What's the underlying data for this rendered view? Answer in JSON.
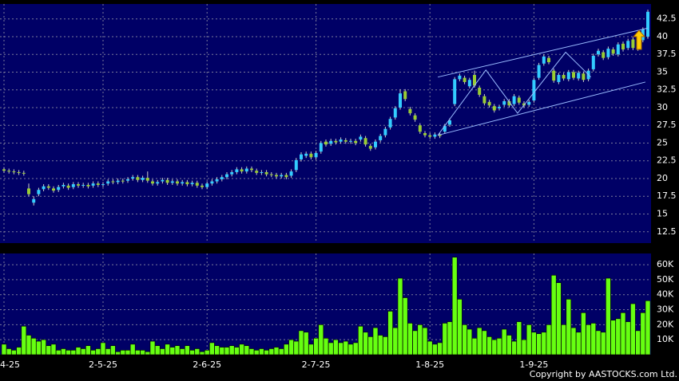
{
  "chart_data": {
    "type": "candlestick",
    "categories": [
      "4-25",
      null,
      null,
      null,
      null,
      null,
      null,
      null,
      null,
      null,
      null,
      null,
      null,
      null,
      null,
      null,
      null,
      null,
      null,
      null,
      "2-5-25",
      null,
      null,
      null,
      null,
      null,
      null,
      null,
      null,
      null,
      null,
      null,
      null,
      null,
      null,
      null,
      null,
      null,
      null,
      null,
      null,
      "2-6-25",
      null,
      null,
      null,
      null,
      null,
      null,
      null,
      null,
      null,
      null,
      null,
      null,
      null,
      null,
      null,
      null,
      null,
      null,
      null,
      null,
      null,
      "2-7-25",
      null,
      null,
      null,
      null,
      null,
      null,
      null,
      null,
      null,
      null,
      null,
      null,
      null,
      null,
      null,
      null,
      null,
      null,
      null,
      null,
      null,
      null,
      "1-8-25",
      null,
      null,
      null,
      null,
      null,
      null,
      null,
      null,
      null,
      null,
      null,
      null,
      null,
      null,
      null,
      null,
      null,
      null,
      null,
      null,
      "1-9-25",
      null,
      null,
      null,
      null,
      null,
      null,
      null,
      null,
      null,
      null,
      null,
      null,
      null,
      null,
      null,
      null,
      null,
      null,
      null,
      null,
      null,
      null,
      null
    ],
    "open": [
      21.3,
      21.1,
      21.0,
      20.9,
      20.8,
      18.6,
      16.6,
      17.8,
      18.5,
      18.9,
      18.6,
      18.4,
      18.9,
      19.0,
      18.8,
      19.2,
      19.0,
      19.1,
      19.0,
      19.3,
      19.1,
      19.3,
      19.6,
      19.5,
      19.7,
      19.7,
      20.0,
      20.2,
      19.8,
      20.1,
      19.6,
      19.3,
      19.6,
      19.8,
      19.4,
      19.6,
      19.3,
      19.5,
      19.2,
      19.4,
      19.0,
      18.8,
      19.3,
      19.6,
      19.9,
      20.2,
      20.6,
      20.9,
      21.3,
      21.0,
      21.4,
      21.1,
      20.8,
      20.9,
      20.6,
      20.5,
      20.3,
      20.5,
      20.4,
      21.2,
      22.7,
      23.2,
      23.5,
      23.0,
      23.8,
      25.2,
      24.9,
      25.3,
      25.2,
      25.4,
      25.2,
      25.3,
      25.5,
      25.7,
      24.6,
      24.4,
      25.4,
      26.1,
      27.2,
      28.6,
      30.0,
      32.3,
      29.8,
      28.9,
      27.5,
      26.4,
      26.1,
      25.9,
      26.2,
      26.6,
      27.6,
      30.5,
      34.0,
      34.2,
      33.0,
      34.6,
      32.8,
      31.6,
      30.8,
      30.2,
      29.9,
      30.4,
      30.9,
      30.5,
      31.4,
      30.6,
      30.4,
      31.0,
      34.2,
      36.2,
      37.0,
      35.2,
      33.6,
      34.6,
      34.0,
      35.0,
      34.1,
      34.8,
      34.0,
      35.4,
      37.5,
      37.8,
      37.1,
      38.2,
      37.5,
      39.0,
      38.4,
      39.6,
      38.3,
      39.5,
      40.0
    ],
    "high": [
      21.6,
      21.4,
      21.3,
      21.2,
      21.1,
      19.3,
      17.5,
      18.7,
      19.2,
      19.2,
      18.9,
      19.1,
      19.4,
      19.3,
      19.5,
      19.5,
      19.4,
      19.4,
      19.6,
      19.6,
      19.5,
      19.9,
      19.9,
      20.0,
      20.0,
      20.2,
      20.5,
      20.5,
      20.4,
      21.0,
      19.9,
      19.8,
      20.1,
      20.1,
      19.9,
      19.9,
      19.8,
      19.8,
      19.7,
      19.7,
      19.3,
      19.6,
      19.9,
      20.2,
      20.5,
      20.9,
      21.2,
      21.6,
      21.6,
      21.7,
      21.7,
      21.4,
      21.2,
      21.2,
      20.9,
      20.8,
      20.8,
      20.8,
      21.3,
      22.9,
      23.7,
      23.8,
      23.8,
      23.9,
      25.3,
      25.5,
      25.6,
      25.6,
      25.8,
      25.7,
      25.6,
      25.6,
      26.2,
      26.0,
      24.9,
      25.5,
      26.3,
      27.3,
      28.7,
      30.2,
      32.6,
      32.6,
      30.1,
      29.2,
      27.8,
      26.7,
      26.4,
      26.5,
      26.5,
      27.7,
      28.5,
      34.3,
      34.8,
      34.5,
      34.2,
      35.2,
      33.1,
      31.9,
      31.1,
      30.5,
      30.4,
      31.2,
      31.2,
      31.9,
      31.7,
      30.9,
      31.1,
      34.2,
      36.3,
      37.5,
      37.3,
      35.5,
      34.9,
      34.9,
      35.3,
      35.3,
      35.2,
      35.1,
      35.5,
      37.6,
      38.3,
      38.1,
      38.6,
      38.5,
      39.2,
      39.3,
      39.7,
      39.9,
      39.9,
      41.3,
      43.8
    ],
    "low": [
      20.8,
      20.7,
      20.6,
      20.5,
      20.4,
      17.5,
      16.2,
      17.5,
      18.2,
      18.4,
      18.0,
      18.1,
      18.6,
      18.4,
      18.5,
      18.7,
      18.7,
      18.6,
      18.7,
      18.8,
      18.8,
      19.0,
      19.2,
      19.2,
      19.3,
      19.4,
      19.7,
      19.5,
      19.5,
      19.4,
      19.0,
      19.0,
      19.3,
      19.1,
      19.1,
      19.0,
      19.0,
      18.9,
      18.9,
      18.7,
      18.5,
      18.5,
      19.0,
      19.3,
      19.6,
      19.9,
      20.3,
      20.6,
      20.7,
      20.7,
      20.9,
      20.5,
      20.5,
      20.3,
      20.2,
      20.0,
      20.0,
      19.9,
      20.1,
      20.9,
      22.4,
      22.9,
      22.7,
      22.7,
      23.5,
      24.5,
      24.6,
      24.8,
      24.9,
      24.9,
      24.9,
      24.7,
      25.2,
      24.5,
      23.9,
      24.1,
      25.1,
      25.8,
      26.9,
      28.3,
      29.7,
      30.9,
      28.9,
      28.0,
      26.3,
      25.8,
      25.6,
      25.6,
      25.7,
      26.3,
      27.3,
      30.2,
      33.7,
      33.3,
      32.7,
      32.8,
      31.5,
      30.3,
      30.0,
      29.3,
      29.6,
      30.1,
      30.0,
      30.2,
      30.4,
      30.0,
      30.1,
      30.7,
      33.9,
      35.9,
      36.1,
      33.5,
      33.3,
      33.8,
      33.7,
      33.9,
      33.8,
      33.6,
      33.7,
      35.1,
      37.2,
      36.7,
      36.8,
      37.3,
      37.2,
      37.9,
      38.1,
      38.1,
      38.0,
      39.2,
      39.7
    ],
    "close": [
      21.1,
      21.0,
      20.9,
      20.8,
      20.7,
      17.8,
      17.1,
      18.4,
      18.9,
      18.7,
      18.3,
      18.8,
      19.1,
      18.7,
      19.2,
      19.0,
      19.1,
      18.9,
      19.3,
      19.1,
      19.2,
      19.6,
      19.5,
      19.7,
      19.6,
      19.9,
      20.2,
      19.8,
      20.1,
      19.7,
      19.3,
      19.5,
      19.8,
      19.4,
      19.6,
      19.3,
      19.5,
      19.2,
      19.4,
      19.0,
      18.8,
      19.3,
      19.6,
      19.9,
      20.2,
      20.6,
      20.9,
      21.3,
      21.0,
      21.4,
      21.2,
      20.8,
      20.9,
      20.6,
      20.5,
      20.3,
      20.5,
      20.2,
      21.0,
      22.6,
      23.4,
      23.5,
      23.0,
      23.6,
      25.0,
      24.8,
      25.3,
      25.1,
      25.5,
      25.2,
      25.3,
      25.0,
      25.9,
      24.8,
      24.2,
      25.2,
      26.0,
      27.0,
      28.4,
      29.9,
      32.0,
      31.2,
      29.2,
      28.3,
      26.6,
      26.1,
      25.9,
      26.2,
      26.0,
      27.4,
      28.2,
      34.0,
      34.5,
      33.6,
      33.9,
      33.1,
      31.8,
      30.6,
      30.3,
      29.6,
      30.1,
      30.9,
      30.3,
      31.6,
      30.7,
      30.3,
      30.8,
      33.9,
      36.0,
      37.2,
      36.4,
      33.8,
      34.6,
      34.1,
      35.0,
      34.2,
      34.9,
      33.9,
      35.2,
      37.3,
      38.0,
      37.0,
      38.3,
      37.6,
      38.9,
      38.2,
      39.4,
      38.4,
      39.6,
      41.0,
      43.5
    ],
    "volume": [
      7000,
      4000,
      3000,
      5000,
      19000,
      13000,
      11000,
      9000,
      10000,
      6000,
      7000,
      3000,
      4000,
      3000,
      3000,
      5000,
      4000,
      6000,
      3000,
      4000,
      8000,
      4000,
      6000,
      2000,
      3000,
      3000,
      7000,
      3000,
      3000,
      2000,
      9000,
      6000,
      4000,
      7000,
      5000,
      6000,
      4000,
      6000,
      3000,
      4000,
      2000,
      3000,
      8000,
      6000,
      5000,
      5000,
      6000,
      5000,
      7000,
      6000,
      4000,
      3000,
      4000,
      3000,
      4000,
      5000,
      4000,
      7000,
      10000,
      9000,
      16000,
      15000,
      7000,
      11000,
      20000,
      11000,
      8000,
      10000,
      8000,
      9000,
      7000,
      8000,
      19000,
      15000,
      12000,
      18000,
      13000,
      12000,
      29000,
      18000,
      51000,
      38000,
      21000,
      16000,
      20000,
      18000,
      9000,
      7000,
      8000,
      21000,
      22000,
      65000,
      37000,
      20000,
      17000,
      11000,
      18000,
      16000,
      12000,
      10000,
      11000,
      17000,
      13000,
      9000,
      22000,
      10000,
      20000,
      15000,
      14000,
      15000,
      20000,
      53000,
      48000,
      20000,
      37000,
      18000,
      15000,
      28000,
      20000,
      21000,
      16000,
      15000,
      51000,
      23000,
      24000,
      28000,
      22000,
      34000,
      16000,
      28000,
      36000
    ],
    "ylim": [
      10.9,
      44.6
    ],
    "yticks": [
      12.5,
      15,
      17.5,
      20,
      22.5,
      25,
      27.5,
      30,
      32.5,
      35,
      37.5,
      40,
      42.5
    ],
    "y2lim": [
      0,
      67500
    ],
    "y2ticks": [
      {
        "value": 10000,
        "label": "10K"
      },
      {
        "value": 20000,
        "label": "20K"
      },
      {
        "value": 30000,
        "label": "30K"
      },
      {
        "value": 40000,
        "label": "40K"
      },
      {
        "value": 50000,
        "label": "50K"
      },
      {
        "value": 60000,
        "label": "60K"
      }
    ],
    "trendlines": [
      {
        "x": [
          87.6,
          130
        ],
        "y": [
          34.3,
          41.2
        ]
      },
      {
        "x": [
          87.6,
          129.5
        ],
        "y": [
          26.1,
          33.6
        ]
      },
      {
        "x": [
          87.6,
          97.3,
          103.7,
          113.4,
          118.5
        ],
        "y": [
          26.1,
          35.3,
          29.2,
          37.8,
          34.3
        ]
      }
    ],
    "up_color": "#33ccff",
    "down_color": "#99cc33",
    "volume_color": "#66ff11",
    "trendline_color": "#99bbff",
    "grid": true,
    "copyright": "Copyright by AASTOCKS.com Ltd."
  }
}
